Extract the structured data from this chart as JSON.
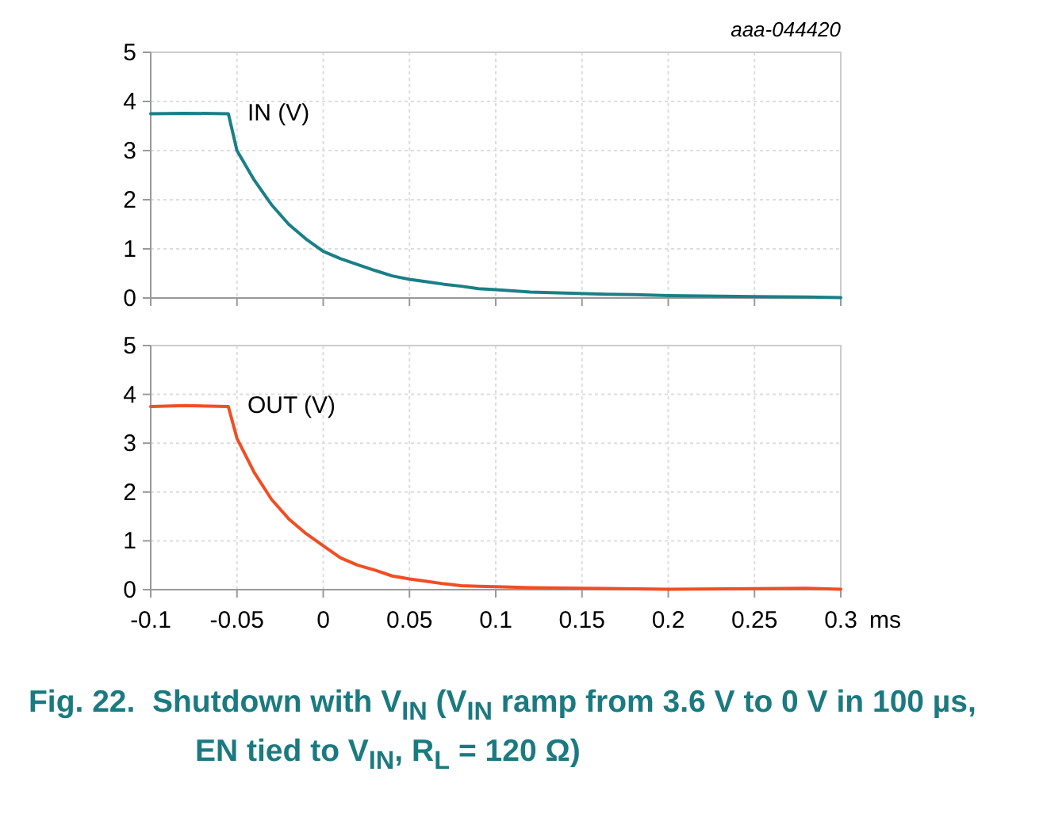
{
  "chart_data": [
    {
      "type": "line",
      "annotations": [
        "aaa-044420"
      ],
      "xlim": [
        -0.1,
        0.3
      ],
      "ylim": [
        0,
        5
      ],
      "xticks": [
        -0.1,
        -0.05,
        0,
        0.05,
        0.1,
        0.15,
        0.2,
        0.25,
        0.3
      ],
      "yticks": [
        0,
        1,
        2,
        3,
        4,
        5
      ],
      "tick_labels": "y",
      "grid": true,
      "series": [
        {
          "name": "IN (V)",
          "color": "#1a7f87",
          "x": [
            -0.1,
            -0.08,
            -0.055,
            -0.05,
            -0.04,
            -0.03,
            -0.02,
            -0.01,
            0,
            0.01,
            0.02,
            0.03,
            0.04,
            0.05,
            0.06,
            0.07,
            0.08,
            0.09,
            0.1,
            0.12,
            0.14,
            0.16,
            0.18,
            0.2,
            0.22,
            0.25,
            0.28,
            0.3
          ],
          "values": [
            3.75,
            3.76,
            3.75,
            3.0,
            2.4,
            1.9,
            1.5,
            1.2,
            0.95,
            0.8,
            0.68,
            0.56,
            0.45,
            0.38,
            0.33,
            0.28,
            0.24,
            0.19,
            0.17,
            0.12,
            0.1,
            0.08,
            0.07,
            0.05,
            0.04,
            0.03,
            0.02,
            0.01
          ]
        }
      ]
    },
    {
      "type": "line",
      "xlabel": "ms",
      "annotations": [
        "Fig. 22.  Shutdown with V$_{IN}$ (V$_{IN}$ ramp from 3.6 V to 0 V in 100 µs, EN tied to V$_{IN}$, R$_{L}$ = 120 Ω)"
      ],
      "xlim": [
        -0.1,
        0.3
      ],
      "ylim": [
        0,
        5
      ],
      "xticks": [
        -0.1,
        -0.05,
        0,
        0.05,
        0.1,
        0.15,
        0.2,
        0.25,
        0.3
      ],
      "yticks": [
        0,
        1,
        2,
        3,
        4,
        5
      ],
      "grid": true,
      "series": [
        {
          "name": "OUT (V)",
          "color": "#f04e23",
          "x": [
            -0.1,
            -0.08,
            -0.055,
            -0.05,
            -0.04,
            -0.03,
            -0.02,
            -0.01,
            0,
            0.01,
            0.02,
            0.03,
            0.04,
            0.05,
            0.06,
            0.07,
            0.08,
            0.09,
            0.1,
            0.12,
            0.15,
            0.2,
            0.25,
            0.28,
            0.3
          ],
          "values": [
            3.75,
            3.77,
            3.75,
            3.1,
            2.4,
            1.85,
            1.45,
            1.15,
            0.9,
            0.65,
            0.5,
            0.4,
            0.28,
            0.22,
            0.17,
            0.12,
            0.08,
            0.07,
            0.06,
            0.04,
            0.03,
            0.01,
            0.02,
            0.03,
            0.01
          ]
        }
      ]
    }
  ]
}
